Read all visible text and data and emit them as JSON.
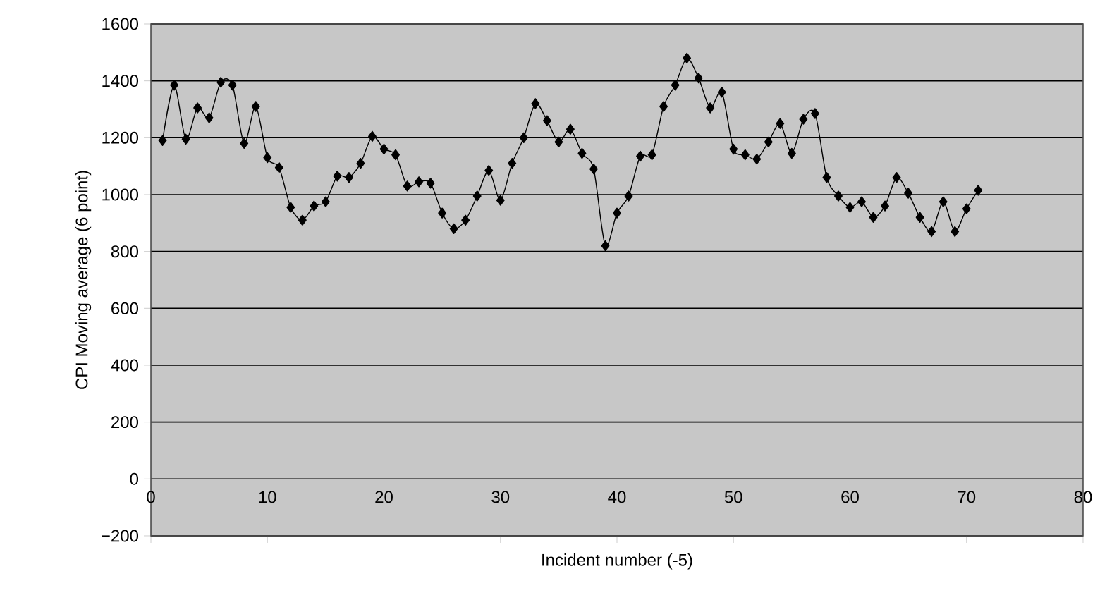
{
  "chart_data": {
    "type": "line",
    "xlabel": "Incident number (-5)",
    "ylabel": "CPI Moving average (6 point)",
    "x": [
      1,
      2,
      3,
      4,
      5,
      6,
      7,
      8,
      9,
      10,
      11,
      12,
      13,
      14,
      15,
      16,
      17,
      18,
      19,
      20,
      21,
      22,
      23,
      24,
      25,
      26,
      27,
      28,
      29,
      30,
      31,
      32,
      33,
      34,
      35,
      36,
      37,
      38,
      39,
      40,
      41,
      42,
      43,
      44,
      45,
      46,
      47,
      48,
      49,
      50,
      51,
      52,
      53,
      54,
      55,
      56,
      57,
      58,
      59,
      60,
      61,
      62,
      63,
      64,
      65,
      66,
      67,
      68,
      69,
      70,
      71
    ],
    "values": [
      1190,
      1385,
      1195,
      1305,
      1270,
      1395,
      1385,
      1180,
      1310,
      1130,
      1095,
      955,
      910,
      960,
      975,
      1065,
      1060,
      1110,
      1205,
      1160,
      1140,
      1030,
      1045,
      1040,
      935,
      880,
      910,
      995,
      1085,
      980,
      1110,
      1200,
      1320,
      1260,
      1185,
      1230,
      1145,
      1090,
      820,
      935,
      995,
      1135,
      1140,
      1310,
      1385,
      1480,
      1410,
      1305,
      1360,
      1160,
      1140,
      1125,
      1185,
      1250,
      1145,
      1265,
      1285,
      1060,
      995,
      955,
      975,
      920,
      960,
      1060,
      1005,
      920,
      870,
      975,
      870,
      950,
      1015
    ],
    "color": "#000000",
    "marker": "diamond",
    "line_style": "solid",
    "grid": "y",
    "xlim": [
      0,
      80
    ],
    "xticks": [
      0,
      10,
      20,
      30,
      40,
      50,
      60,
      70,
      80
    ],
    "ylim": [
      -200,
      1600
    ],
    "yticks": [
      {
        "value": -200,
        "label": "−200"
      },
      0,
      200,
      400,
      600,
      800,
      1000,
      1200,
      1400,
      1600
    ]
  }
}
